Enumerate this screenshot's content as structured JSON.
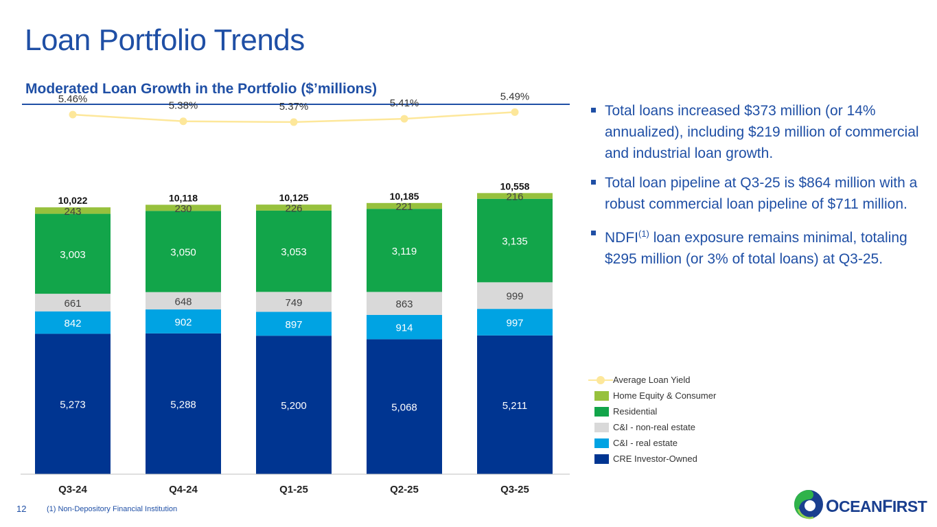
{
  "slide": {
    "title": "Loan Portfolio Trends",
    "page_number": "12",
    "footnote": "(1) Non-Depository Financial Institution",
    "logo": {
      "name": "OceanFirst",
      "text_first": "O",
      "text_rest": "CEAN",
      "text_first2": "F",
      "text_rest2": "IRST"
    }
  },
  "bullets": [
    {
      "text": "Total loans increased $373 million (or 14% annualized), including $219 million of commercial and industrial loan growth."
    },
    {
      "text": "Total loan pipeline at Q3-25 is $864 million with a robust commercial loan pipeline of $711 million."
    },
    {
      "prefix": "NDFI",
      "sup": "(1)",
      "text": " loan exposure remains minimal, totaling $295 million (or 3% of total loans) at Q3-25."
    }
  ],
  "chart_data": {
    "type": "bar",
    "stacked": true,
    "title": "Moderated Loan Growth in the Portfolio ($’millions)",
    "categories": [
      "Q3-24",
      "Q4-24",
      "Q1-25",
      "Q2-25",
      "Q3-25"
    ],
    "series": [
      {
        "name": "CRE Investor-Owned",
        "values": [
          5273,
          5288,
          5200,
          5068,
          5211
        ],
        "color": "#003591"
      },
      {
        "name": "C&I - real estate",
        "values": [
          842,
          902,
          897,
          914,
          997
        ],
        "color": "#00a3e3"
      },
      {
        "name": "C&I - non-real estate",
        "values": [
          661,
          648,
          749,
          863,
          999
        ],
        "color": "#d9d9d9"
      },
      {
        "name": "Residential",
        "values": [
          3003,
          3050,
          3053,
          3119,
          3135
        ],
        "color": "#12a54a"
      },
      {
        "name": "Home Equity & Consumer",
        "values": [
          243,
          230,
          226,
          221,
          216
        ],
        "color": "#97c13d"
      }
    ],
    "value_labels": [
      [
        "5,273",
        "5,288",
        "5,200",
        "5,068",
        "5,211"
      ],
      [
        "842",
        "902",
        "897",
        "914",
        "997"
      ],
      [
        "661",
        "648",
        "749",
        "863",
        "999"
      ],
      [
        "3,003",
        "3,050",
        "3,053",
        "3,119",
        "3,135"
      ],
      [
        "243",
        "230",
        "226",
        "221",
        "216"
      ]
    ],
    "totals": [
      10022,
      10118,
      10125,
      10185,
      10558
    ],
    "total_labels": [
      "10,022",
      "10,118",
      "10,125",
      "10,185",
      "10,558"
    ],
    "yield_series": {
      "name": "Average Loan Yield",
      "values": [
        5.46,
        5.38,
        5.37,
        5.41,
        5.49
      ],
      "labels": [
        "5.46%",
        "5.38%",
        "5.37%",
        "5.41%",
        "5.49%"
      ],
      "color": "#fde79a",
      "range": [
        4.9,
        5.6
      ]
    },
    "legend_order": [
      "Average Loan Yield",
      "Home Equity & Consumer",
      "Residential",
      "C&I - non-real estate",
      "C&I - real estate",
      "CRE Investor-Owned"
    ],
    "legend_position": "right",
    "grid": false
  }
}
